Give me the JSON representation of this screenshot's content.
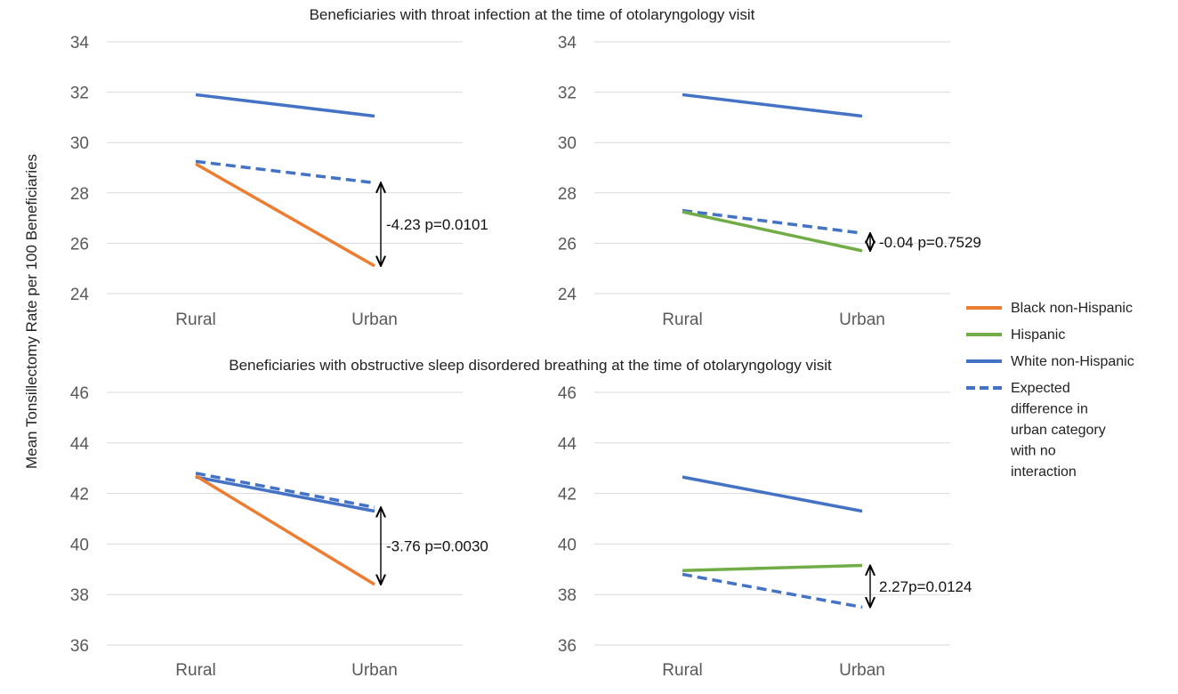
{
  "figure": {
    "y_axis_label": "Mean Tonsillectomy Rate per 100 Beneficiaries",
    "top_row_title": "Beneficiaries with throat infection at the time of otolaryngology visit",
    "bottom_row_title": "Beneficiaries with obstructive sleep disordered breathing at the time of otolaryngology visit"
  },
  "legend": [
    {
      "label": "Black non-Hispanic",
      "color": "#ED7D31",
      "style": "solid"
    },
    {
      "label": "Hispanic",
      "color": "#70AD47",
      "style": "solid"
    },
    {
      "label": "White non-Hispanic",
      "color": "#4472C4",
      "style": "solid"
    },
    {
      "label": "Expected difference in urban category with no interaction",
      "lines": [
        "Expected",
        "difference in",
        "urban category",
        "with no",
        "interaction"
      ],
      "color": "#4472C4",
      "style": "dashed"
    }
  ],
  "chart_data": [
    {
      "type": "line",
      "id": "throat-black",
      "categories": [
        "Rural",
        "Urban"
      ],
      "ylim": [
        24,
        34
      ],
      "yticks": [
        "24",
        "26",
        "28",
        "30",
        "32",
        "34"
      ],
      "grid": true,
      "series": [
        {
          "name": "White non-Hispanic",
          "values": [
            31.9,
            31.05
          ],
          "color": "#4472C4",
          "style": "solid"
        },
        {
          "name": "Expected difference in urban category with no interaction",
          "values": [
            29.25,
            28.4
          ],
          "color": "#4472C4",
          "style": "dashed"
        },
        {
          "name": "Black non-Hispanic",
          "values": [
            29.15,
            25.1
          ],
          "color": "#ED7D31",
          "style": "solid"
        }
      ],
      "annotation": {
        "text": "-4.23 p=0.0101",
        "from": 28.4,
        "to": 25.1
      }
    },
    {
      "type": "line",
      "id": "throat-hispanic",
      "categories": [
        "Rural",
        "Urban"
      ],
      "ylim": [
        24,
        34
      ],
      "yticks": [
        "24",
        "26",
        "28",
        "30",
        "32",
        "34"
      ],
      "grid": true,
      "series": [
        {
          "name": "White non-Hispanic",
          "values": [
            31.9,
            31.05
          ],
          "color": "#4472C4",
          "style": "solid"
        },
        {
          "name": "Expected difference in urban category with no interaction",
          "values": [
            27.3,
            26.4
          ],
          "color": "#4472C4",
          "style": "dashed"
        },
        {
          "name": "Hispanic",
          "values": [
            27.25,
            25.7
          ],
          "color": "#70AD47",
          "style": "solid"
        }
      ],
      "annotation": {
        "text": "-0.04 p=0.7529",
        "from": 26.4,
        "to": 25.7
      }
    },
    {
      "type": "line",
      "id": "osdb-black",
      "categories": [
        "Rural",
        "Urban"
      ],
      "ylim": [
        36,
        46
      ],
      "yticks": [
        "36",
        "38",
        "40",
        "42",
        "44",
        "46"
      ],
      "grid": true,
      "series": [
        {
          "name": "White non-Hispanic",
          "values": [
            42.65,
            41.3
          ],
          "color": "#4472C4",
          "style": "solid"
        },
        {
          "name": "Expected difference in urban category with no interaction",
          "values": [
            42.8,
            41.45
          ],
          "color": "#4472C4",
          "style": "dashed"
        },
        {
          "name": "Black non-Hispanic",
          "values": [
            42.7,
            38.4
          ],
          "color": "#ED7D31",
          "style": "solid"
        }
      ],
      "annotation": {
        "text": "-3.76 p=0.0030",
        "from": 41.45,
        "to": 38.4
      }
    },
    {
      "type": "line",
      "id": "osdb-hispanic",
      "categories": [
        "Rural",
        "Urban"
      ],
      "ylim": [
        36,
        46
      ],
      "yticks": [
        "36",
        "38",
        "40",
        "42",
        "44",
        "46"
      ],
      "grid": true,
      "series": [
        {
          "name": "White non-Hispanic",
          "values": [
            42.65,
            41.3
          ],
          "color": "#4472C4",
          "style": "solid"
        },
        {
          "name": "Hispanic",
          "values": [
            38.95,
            39.15
          ],
          "color": "#70AD47",
          "style": "solid"
        },
        {
          "name": "Expected difference in urban category with no interaction",
          "values": [
            38.8,
            37.5
          ],
          "color": "#4472C4",
          "style": "dashed"
        }
      ],
      "annotation": {
        "text": "2.27p=0.0124",
        "from": 39.15,
        "to": 37.5
      }
    }
  ]
}
